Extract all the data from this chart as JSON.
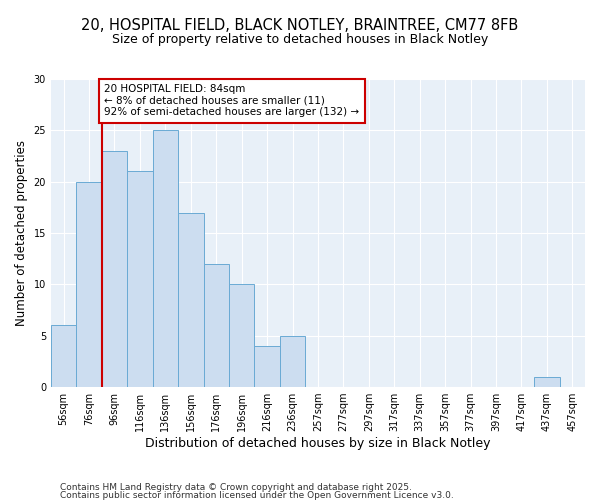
{
  "title_line1": "20, HOSPITAL FIELD, BLACK NOTLEY, BRAINTREE, CM77 8FB",
  "title_line2": "Size of property relative to detached houses in Black Notley",
  "xlabel": "Distribution of detached houses by size in Black Notley",
  "ylabel": "Number of detached properties",
  "categories": [
    "56sqm",
    "76sqm",
    "96sqm",
    "116sqm",
    "136sqm",
    "156sqm",
    "176sqm",
    "196sqm",
    "216sqm",
    "236sqm",
    "257sqm",
    "277sqm",
    "297sqm",
    "317sqm",
    "337sqm",
    "357sqm",
    "377sqm",
    "397sqm",
    "417sqm",
    "437sqm",
    "457sqm"
  ],
  "values": [
    6,
    20,
    23,
    21,
    25,
    17,
    12,
    10,
    4,
    5,
    0,
    0,
    0,
    0,
    0,
    0,
    0,
    0,
    0,
    1,
    0
  ],
  "bar_color": "#ccddf0",
  "bar_edge_color": "#6aaad4",
  "red_line_color": "#cc0000",
  "red_line_x": 1.5,
  "annotation_text": "20 HOSPITAL FIELD: 84sqm\n← 8% of detached houses are smaller (11)\n92% of semi-detached houses are larger (132) →",
  "annotation_box_facecolor": "#ffffff",
  "annotation_box_edgecolor": "#cc0000",
  "footer_line1": "Contains HM Land Registry data © Crown copyright and database right 2025.",
  "footer_line2": "Contains public sector information licensed under the Open Government Licence v3.0.",
  "ylim": [
    0,
    30
  ],
  "yticks": [
    0,
    5,
    10,
    15,
    20,
    25,
    30
  ],
  "plot_bg_color": "#e8f0f8",
  "title_fontsize": 10.5,
  "subtitle_fontsize": 9,
  "ylabel_fontsize": 8.5,
  "xlabel_fontsize": 9,
  "tick_fontsize": 7,
  "annotation_fontsize": 7.5,
  "footer_fontsize": 6.5
}
